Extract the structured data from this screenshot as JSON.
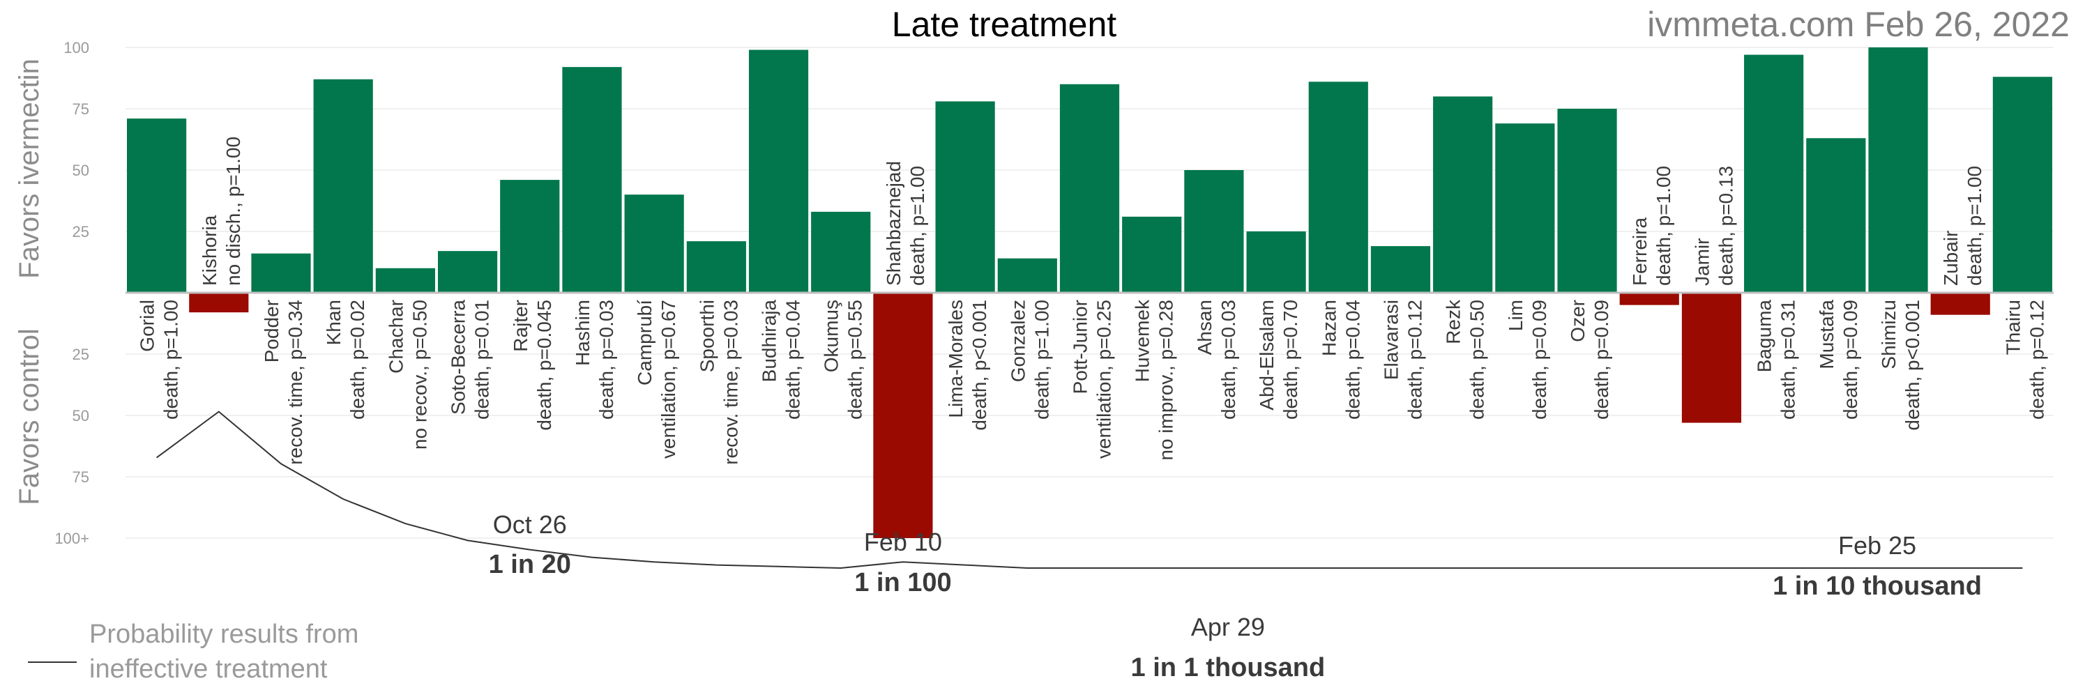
{
  "title": "Late treatment",
  "source": "ivmmeta.com Feb 26, 2022",
  "colors": {
    "favor": "#02774D",
    "against": "#9A0A00",
    "line": "#333333"
  },
  "chart_data": {
    "type": "bar",
    "title": "Late treatment",
    "ylabel_top": "Favors ivermectin",
    "ylabel_bottom": "Favors control",
    "y_top_ticks": [
      "100",
      "75",
      "50",
      "25"
    ],
    "y_bottom_ticks": [
      "25",
      "50",
      "75",
      "100+"
    ],
    "ylim": [
      -100,
      100
    ],
    "grid": true,
    "studies": [
      {
        "name": "Gorial",
        "outcome": "death, p=1.00",
        "value": 71
      },
      {
        "name": "Kishoria",
        "outcome": "no disch., p=1.00",
        "value": -8
      },
      {
        "name": "Podder",
        "outcome": "recov. time, p=0.34",
        "value": 16
      },
      {
        "name": "Khan",
        "outcome": "death, p=0.02",
        "value": 87
      },
      {
        "name": "Chachar",
        "outcome": "no recov., p=0.50",
        "value": 10
      },
      {
        "name": "Soto-Becerra",
        "outcome": "death, p=0.01",
        "value": 17
      },
      {
        "name": "Rajter",
        "outcome": "death, p=0.045",
        "value": 46
      },
      {
        "name": "Hashim",
        "outcome": "death, p=0.03",
        "value": 92
      },
      {
        "name": "Camprubí",
        "outcome": "ventilation, p=0.67",
        "value": 40
      },
      {
        "name": "Spoorthi",
        "outcome": "recov. time, p=0.03",
        "value": 21
      },
      {
        "name": "Budhiraja",
        "outcome": "death, p=0.04",
        "value": 99
      },
      {
        "name": "Okumuş",
        "outcome": "death, p=0.55",
        "value": 33
      },
      {
        "name": "Shahbaznejad",
        "outcome": "death, p=1.00",
        "value": -100
      },
      {
        "name": "Lima-Morales",
        "outcome": "death, p<0.001",
        "value": 78
      },
      {
        "name": "Gonzalez",
        "outcome": "death, p=1.00",
        "value": 14
      },
      {
        "name": "Pott-Junior",
        "outcome": "ventilation, p=0.25",
        "value": 85
      },
      {
        "name": "Huvemek",
        "outcome": "no improv., p=0.28",
        "value": 31
      },
      {
        "name": "Ahsan",
        "outcome": "death, p=0.03",
        "value": 50
      },
      {
        "name": "Abd-Elsalam",
        "outcome": "death, p=0.70",
        "value": 25
      },
      {
        "name": "Hazan",
        "outcome": "death, p=0.04",
        "value": 86
      },
      {
        "name": "Elavarasi",
        "outcome": "death, p=0.12",
        "value": 19
      },
      {
        "name": "Rezk",
        "outcome": "death, p=0.50",
        "value": 80
      },
      {
        "name": "Lim",
        "outcome": "death, p=0.09",
        "value": 69
      },
      {
        "name": "Ozer",
        "outcome": "death, p=0.09",
        "value": 75
      },
      {
        "name": "Ferreira",
        "outcome": "death, p=1.00",
        "value": -5
      },
      {
        "name": "Jamir",
        "outcome": "death, p=0.13",
        "value": -53
      },
      {
        "name": "Baguma",
        "outcome": "death, p=0.31",
        "value": 97
      },
      {
        "name": "Mustafa",
        "outcome": "death, p=0.09",
        "value": 63
      },
      {
        "name": "Shimizu",
        "outcome": "death, p<0.001",
        "value": 100
      },
      {
        "name": "Zubair",
        "outcome": "death, p=1.00",
        "value": -9
      },
      {
        "name": "Thairu",
        "outcome": "death, p=0.12",
        "value": 88
      }
    ],
    "probability_line": {
      "label": "Probability results from ineffective treatment",
      "values": [
        63,
        33,
        67,
        90,
        106,
        117,
        123,
        128,
        131,
        133,
        134,
        135,
        131,
        133,
        135,
        135,
        135,
        135,
        135,
        135,
        135,
        135,
        135,
        135,
        135,
        135,
        135,
        135,
        135,
        135,
        135
      ]
    },
    "annotations": [
      {
        "date": "Oct 26",
        "prob": "1 in 20"
      },
      {
        "date": "Feb 10",
        "prob": "1 in 100"
      },
      {
        "date": "Apr 29",
        "prob": "1 in 1 thousand"
      },
      {
        "date": "Feb 25",
        "prob": "1 in 10 thousand"
      }
    ]
  }
}
